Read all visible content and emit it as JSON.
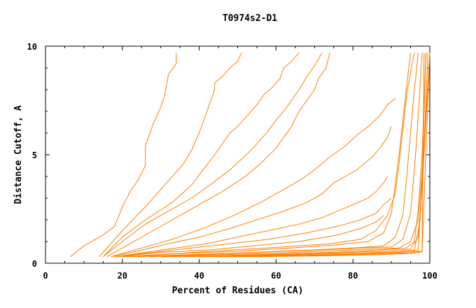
{
  "chart_data": {
    "type": "line",
    "title": "T0974s2-D1",
    "xlabel": "Percent of Residues (CA)",
    "ylabel": "Distance Cutoff, A",
    "xlim": [
      0,
      100
    ],
    "ylim": [
      0,
      10
    ],
    "x_ticks": [
      0,
      20,
      40,
      60,
      80,
      100
    ],
    "y_ticks": [
      0,
      5,
      10
    ],
    "grid": false,
    "legend": "none",
    "line_color": "#ff7f00",
    "series": [
      {
        "x": [
          6.5,
          10,
          15,
          18,
          20,
          22,
          24,
          26,
          26,
          28,
          30,
          31,
          32,
          34,
          34
        ],
        "y": [
          0.3,
          0.8,
          1.3,
          1.7,
          2.6,
          3.3,
          3.8,
          4.5,
          5.4,
          6.4,
          7.2,
          7.7,
          8.7,
          9.2,
          9.7
        ]
      },
      {
        "x": [
          14,
          20,
          26,
          31,
          36,
          38,
          40,
          42,
          44,
          44,
          46,
          48,
          50,
          51
        ],
        "y": [
          0.3,
          1.5,
          2.6,
          3.6,
          4.6,
          5.2,
          6.0,
          7.0,
          8.0,
          8.3,
          8.6,
          9.0,
          9.3,
          9.7
        ]
      },
      {
        "x": [
          15,
          20,
          26,
          33,
          38,
          41,
          44,
          46,
          48,
          50,
          52,
          55,
          57,
          59,
          61,
          62,
          64,
          66
        ],
        "y": [
          0.3,
          1.2,
          2.0,
          2.8,
          3.6,
          4.3,
          5.0,
          5.5,
          6.0,
          6.3,
          6.7,
          7.3,
          7.8,
          8.1,
          8.5,
          9.0,
          9.3,
          9.7
        ]
      },
      {
        "x": [
          15,
          20,
          26,
          32,
          38,
          42,
          45,
          48,
          51,
          54,
          56,
          58,
          60,
          62,
          64,
          66,
          68,
          70,
          72
        ],
        "y": [
          0.3,
          1.0,
          1.8,
          2.4,
          3.0,
          3.5,
          3.9,
          4.3,
          4.8,
          5.3,
          5.7,
          6.1,
          6.6,
          7.0,
          7.5,
          8.0,
          8.6,
          9.1,
          9.7
        ]
      },
      {
        "x": [
          16,
          22,
          28,
          34,
          40,
          46,
          52,
          56,
          60,
          62,
          64,
          66,
          68,
          70,
          71,
          73,
          74
        ],
        "y": [
          0.3,
          0.9,
          1.5,
          2.1,
          2.7,
          3.3,
          4.0,
          4.6,
          5.3,
          5.8,
          6.3,
          7.0,
          7.5,
          8.0,
          8.5,
          9.0,
          9.7
        ]
      },
      {
        "x": [
          17,
          25,
          33,
          41,
          49,
          56,
          61,
          66,
          70,
          74,
          78,
          81,
          84,
          87,
          89,
          91
        ],
        "y": [
          0.3,
          0.7,
          1.1,
          1.6,
          2.2,
          2.8,
          3.3,
          3.8,
          4.3,
          4.9,
          5.4,
          5.9,
          6.3,
          6.8,
          7.3,
          7.6
        ]
      },
      {
        "x": [
          17,
          25,
          32,
          40,
          48,
          55,
          62,
          68,
          72,
          75,
          78,
          81,
          83,
          85,
          87,
          89,
          90
        ],
        "y": [
          0.3,
          0.6,
          0.9,
          1.2,
          1.6,
          2.0,
          2.4,
          2.8,
          3.2,
          3.7,
          4.0,
          4.3,
          4.6,
          4.9,
          5.3,
          5.8,
          6.3
        ]
      },
      {
        "x": [
          18,
          26,
          34,
          42,
          50,
          58,
          66,
          72,
          76,
          80,
          84,
          86,
          88,
          89
        ],
        "y": [
          0.3,
          0.5,
          0.7,
          0.9,
          1.2,
          1.5,
          1.8,
          2.1,
          2.4,
          2.7,
          3.0,
          3.3,
          3.7,
          4.0
        ]
      },
      {
        "x": [
          18,
          28,
          38,
          48,
          58,
          68,
          76,
          82,
          86,
          88,
          90
        ],
        "y": [
          0.3,
          0.5,
          0.7,
          0.9,
          1.1,
          1.4,
          1.7,
          2.0,
          2.3,
          2.7,
          3.0
        ]
      },
      {
        "x": [
          19,
          30,
          42,
          54,
          66,
          76,
          82,
          86,
          88
        ],
        "y": [
          0.3,
          0.5,
          0.6,
          0.8,
          1.0,
          1.3,
          1.6,
          1.9,
          2.2
        ]
      },
      {
        "x": [
          20,
          34,
          48,
          62,
          74,
          82,
          86,
          89,
          91,
          92,
          93,
          94,
          95,
          96
        ],
        "y": [
          0.3,
          0.45,
          0.6,
          0.75,
          0.9,
          1.1,
          1.5,
          2.2,
          3.2,
          4.6,
          6.2,
          7.8,
          8.8,
          9.7
        ]
      },
      {
        "x": [
          21,
          35,
          50,
          64,
          76,
          84,
          88,
          90,
          91,
          92,
          93,
          94,
          95
        ],
        "y": [
          0.3,
          0.45,
          0.55,
          0.7,
          0.85,
          1.0,
          1.4,
          2.3,
          3.6,
          5.0,
          6.6,
          8.2,
          9.7
        ]
      },
      {
        "x": [
          22,
          38,
          54,
          68,
          80,
          88,
          91,
          93,
          94,
          95,
          96,
          97
        ],
        "y": [
          0.3,
          0.4,
          0.5,
          0.6,
          0.7,
          0.8,
          1.2,
          2.2,
          4.0,
          6.0,
          8.0,
          9.7
        ]
      },
      {
        "x": [
          24,
          40,
          56,
          70,
          82,
          90,
          93,
          95,
          96,
          97,
          98
        ],
        "y": [
          0.3,
          0.4,
          0.5,
          0.6,
          0.7,
          0.75,
          1.1,
          2.3,
          4.3,
          6.8,
          9.7
        ]
      },
      {
        "x": [
          27,
          42,
          58,
          72,
          84,
          92,
          95,
          97,
          98,
          99,
          100
        ],
        "y": [
          0.3,
          0.38,
          0.45,
          0.55,
          0.65,
          0.7,
          1.0,
          2.0,
          4.2,
          7.0,
          9.7
        ]
      },
      {
        "x": [
          30,
          45,
          60,
          74,
          86,
          94,
          96,
          97,
          98,
          98.5,
          99
        ],
        "y": [
          0.3,
          0.35,
          0.42,
          0.5,
          0.6,
          0.7,
          1.0,
          2.5,
          5.0,
          7.5,
          9.7
        ]
      },
      {
        "x": [
          33,
          48,
          62,
          76,
          88,
          95,
          97,
          98,
          99,
          100
        ],
        "y": [
          0.3,
          0.35,
          0.4,
          0.48,
          0.56,
          0.65,
          1.2,
          3.5,
          6.5,
          9.7
        ]
      },
      {
        "x": [
          36,
          50,
          64,
          78,
          90,
          96,
          97.5,
          98.5,
          99.5
        ],
        "y": [
          0.3,
          0.34,
          0.38,
          0.45,
          0.52,
          0.6,
          2.0,
          5.5,
          9.7
        ]
      },
      {
        "x": [
          40,
          54,
          68,
          80,
          92,
          97,
          98,
          99
        ],
        "y": [
          0.3,
          0.33,
          0.36,
          0.42,
          0.5,
          0.58,
          4.0,
          9.7
        ]
      },
      {
        "x": [
          44,
          58,
          70,
          82,
          94,
          98,
          98.5
        ],
        "y": [
          0.3,
          0.32,
          0.35,
          0.4,
          0.48,
          0.55,
          9.7
        ]
      },
      {
        "x": [
          48,
          60,
          72,
          84,
          95,
          98,
          100
        ],
        "y": [
          0.3,
          0.31,
          0.34,
          0.38,
          0.45,
          0.52,
          9.7
        ]
      }
    ]
  }
}
